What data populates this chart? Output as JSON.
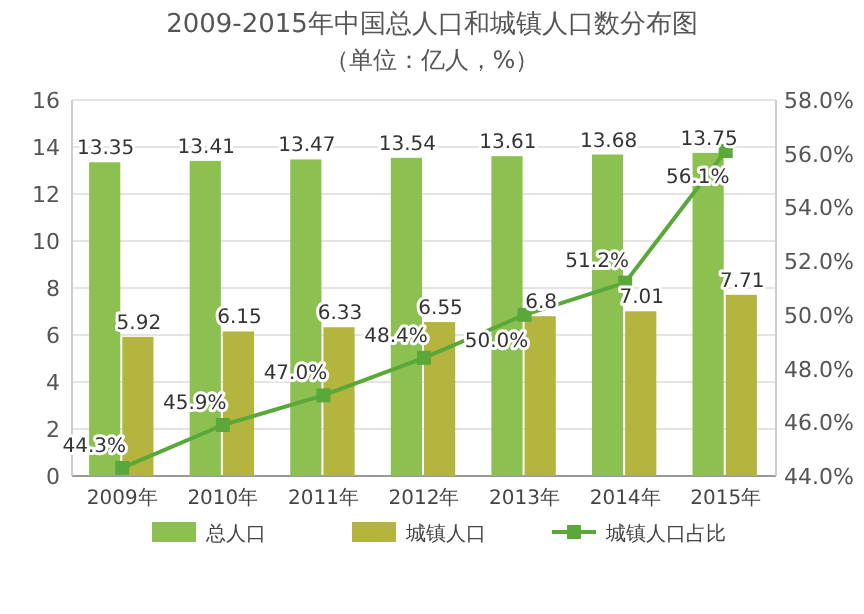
{
  "chart_data": {
    "type": "bar",
    "title": "2009-2015年中国总人口和城镇人口数分布图",
    "subtitle": "（单位：亿人，%）",
    "categories": [
      "2009年",
      "2010年",
      "2011年",
      "2012年",
      "2013年",
      "2014年",
      "2015年"
    ],
    "series": [
      {
        "name": "总人口",
        "color": "#8cc152",
        "values": [
          13.35,
          13.41,
          13.47,
          13.54,
          13.61,
          13.68,
          13.75
        ],
        "value_labels": [
          "13.35",
          "13.41",
          "13.47",
          "13.54",
          "13.61",
          "13.68",
          "13.75"
        ]
      },
      {
        "name": "城镇人口",
        "color": "#b3b53e",
        "values": [
          5.92,
          6.15,
          6.33,
          6.55,
          6.8,
          7.01,
          7.71
        ],
        "value_labels": [
          "5.92",
          "6.15",
          "6.33",
          "6.55",
          "6.8",
          "7.01",
          "7.71"
        ]
      },
      {
        "name": "城镇人口占比",
        "type": "line",
        "axis": "y2",
        "color": "#5aa83a",
        "marker": "square",
        "values": [
          44.3,
          45.9,
          47.0,
          48.4,
          50.0,
          51.2,
          56.1
        ],
        "value_labels": [
          "44.3%",
          "45.9%",
          "47.0%",
          "48.4%",
          "50.0%",
          "51.2%",
          "56.1%"
        ]
      }
    ],
    "ylim": [
      0,
      16
    ],
    "yticks": [
      0,
      2,
      4,
      6,
      8,
      10,
      12,
      14,
      16
    ],
    "y2lim": [
      44,
      58
    ],
    "y2ticks": [
      {
        "value": 44,
        "label": "44.0%"
      },
      {
        "value": 46,
        "label": "46.0%"
      },
      {
        "value": 48,
        "label": "48.0%"
      },
      {
        "value": 50,
        "label": "50.0%"
      },
      {
        "value": 52,
        "label": "52.0%"
      },
      {
        "value": 54,
        "label": "54.0%"
      },
      {
        "value": 56,
        "label": "56.0%"
      },
      {
        "value": 58,
        "label": "58.0%"
      }
    ],
    "grid": "y",
    "legend": "bottom"
  }
}
